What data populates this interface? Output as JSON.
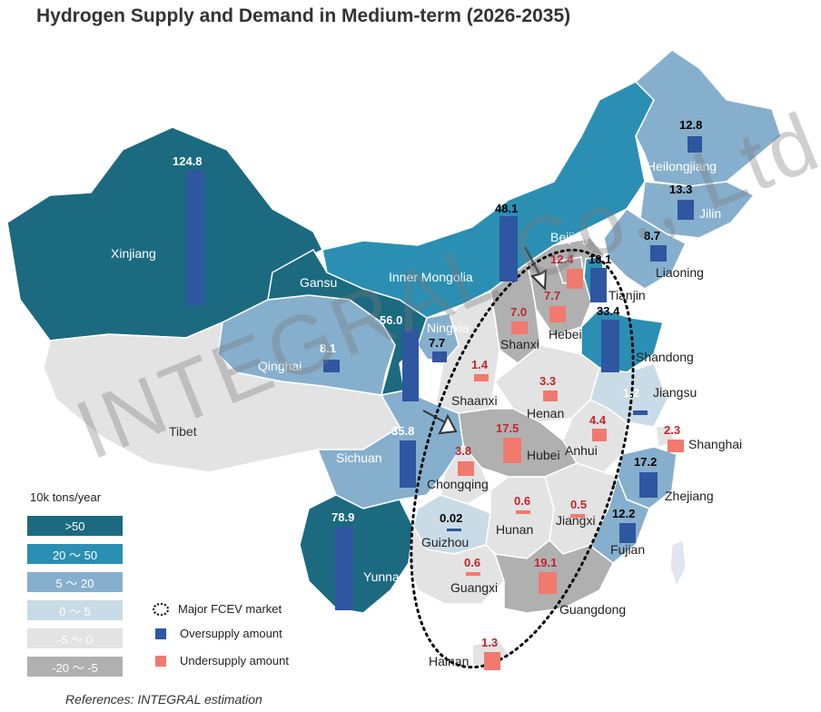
{
  "title": "Hydrogen Supply and Demand in Medium-term (2026-2035)",
  "references": "References: INTEGRAL estimation",
  "watermark": "INTEGRAL Co., Ltd",
  "colors": {
    "gt50": "#1b6a80",
    "r20_50": "#2a8fb3",
    "r5_20": "#86afcd",
    "r0_5": "#c9dbe6",
    "rneg5_0": "#e3e3e3",
    "rneg20_neg5": "#b0b0b0",
    "oversupply": "#2f56a0",
    "undersupply": "#f07a6d"
  },
  "legend": {
    "unit": "10k tons/year",
    "ranges": [
      ">50",
      "20 ～ 50",
      "5 ～ 20",
      "0 ～ 5",
      "-5 ～ 0",
      "-20 ～ -5"
    ],
    "fcev_label": "Major FCEV market",
    "oversupply_label": "Oversupply amount",
    "undersupply_label": "Undersupply amount"
  },
  "regions": {
    "xinjiang": "Xinjiang",
    "tibet": "Tibet",
    "qinghai": "Qinghai",
    "gansu": "Gansu",
    "inner_mongolia": "Inner Mongolia",
    "heilongjiang": "Heilongjiang",
    "jilin": "Jilin",
    "liaoning": "Liaoning",
    "beijing": "Beijing",
    "tianjin": "Tianjin",
    "hebei": "Hebei",
    "shanxi": "Shanxi",
    "ningxia": "Ningxia",
    "shaanxi": "Shaanxi",
    "henan": "Henan",
    "shandong": "Shandong",
    "jiangsu": "Jiangsu",
    "anhui": "Anhui",
    "shanghai": "Shanghai",
    "hubei": "Hubei",
    "sichuan": "Sichuan",
    "chongqing": "Chongqing",
    "zhejiang": "Zhejiang",
    "guizhou": "Guizhou",
    "hunan": "Hunan",
    "jiangxi": "Jiangxi",
    "fujian": "Fujian",
    "yunnan": "Yunnan",
    "guangxi": "Guangxi",
    "guangdong": "Guangdong",
    "hainan": "Hainan"
  },
  "values": {
    "xinjiang": "124.8",
    "inner_mongolia": "48.1",
    "heilongjiang": "12.8",
    "jilin": "13.3",
    "liaoning": "8.7",
    "tianjin": "18.1",
    "beijing": "12.4",
    "hebei": "7.7",
    "shanxi": "7.0",
    "ningxia_main": "56.0",
    "ningxia_small": "7.7",
    "qinghai": "8.1",
    "shandong": "33.4",
    "shaanxi": "1.4",
    "henan": "3.3",
    "jiangsu": "1.2",
    "shanghai": "2.3",
    "anhui": "4.4",
    "hubei": "17.5",
    "sichuan": "35.8",
    "chongqing": "3.8",
    "zhejiang": "17.2",
    "guizhou": "0.02",
    "hunan": "0.6",
    "jiangxi": "0.5",
    "fujian": "12.2",
    "yunnan": "78.9",
    "guangxi": "0.6",
    "guangdong": "19.1",
    "hainan": "1.3"
  }
}
